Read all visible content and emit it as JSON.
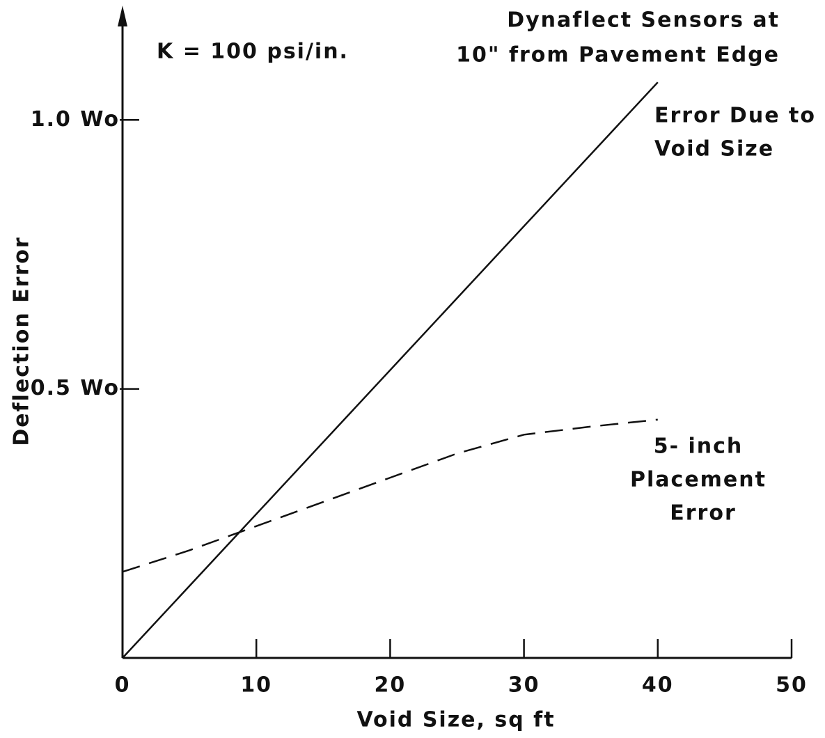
{
  "chart_data": {
    "type": "line",
    "x_label": "Void Size, sq ft",
    "y_label": "Deflection Error",
    "annotations": [
      "K = 100 psi/in.",
      "Dynaflect Sensors at",
      "10\" from Pavement Edge",
      "Error Due to",
      "Void Size",
      "5- inch",
      "Placement",
      "Error"
    ],
    "xlim": [
      0,
      50
    ],
    "ylim": [
      0,
      1.21
    ],
    "xticks": [
      0,
      10,
      20,
      30,
      40,
      50
    ],
    "yticks": [
      {
        "value": 1.0,
        "label": "1.0 Wo"
      },
      {
        "value": 0.5,
        "label": "0.5 Wo"
      }
    ],
    "series": [
      {
        "color": "#111111",
        "linestyle": "solid",
        "x": [
          0,
          40
        ],
        "values": [
          0,
          1.07
        ]
      },
      {
        "color": "#111111",
        "linestyle": "dashed",
        "x": [
          0,
          5,
          10,
          15,
          20,
          25,
          30,
          35,
          40
        ],
        "values": [
          0.16,
          0.2,
          0.245,
          0.29,
          0.335,
          0.38,
          0.415,
          0.43,
          0.443
        ]
      }
    ]
  }
}
